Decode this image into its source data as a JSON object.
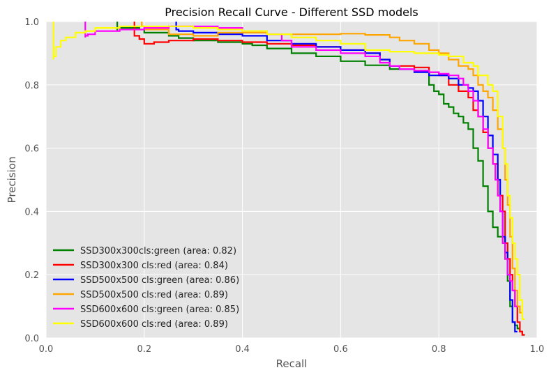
{
  "chart_data": {
    "type": "line",
    "title": "Precision Recall Curve - Different SSD models",
    "xlabel": "Recall",
    "ylabel": "Precision",
    "xlim": [
      0.0,
      1.0
    ],
    "ylim": [
      0.0,
      1.0
    ],
    "xticks": [
      "0.0",
      "0.2",
      "0.4",
      "0.6",
      "0.8",
      "1.0"
    ],
    "yticks": [
      "0.0",
      "0.2",
      "0.4",
      "0.6",
      "0.8",
      "1.0"
    ],
    "grid": true,
    "legend_position": "lower-left",
    "series": [
      {
        "name": "SSD300x300cls:green (area: 0.82)",
        "color": "#008000",
        "x": [
          0.145,
          0.145,
          0.15,
          0.18,
          0.19,
          0.2,
          0.25,
          0.27,
          0.3,
          0.35,
          0.4,
          0.42,
          0.45,
          0.5,
          0.55,
          0.6,
          0.65,
          0.7,
          0.75,
          0.78,
          0.79,
          0.8,
          0.81,
          0.82,
          0.83,
          0.84,
          0.85,
          0.86,
          0.87,
          0.88,
          0.89,
          0.9,
          0.91,
          0.92,
          0.93,
          0.935,
          0.94,
          0.945,
          0.95,
          0.955,
          0.96,
          0.965,
          0.97,
          0.975
        ],
        "y": [
          1.0,
          0.97,
          0.98,
          0.98,
          0.98,
          0.975,
          0.965,
          0.955,
          0.948,
          0.94,
          0.935,
          0.93,
          0.925,
          0.915,
          0.9,
          0.89,
          0.875,
          0.862,
          0.85,
          0.845,
          0.8,
          0.78,
          0.77,
          0.74,
          0.73,
          0.71,
          0.7,
          0.68,
          0.66,
          0.6,
          0.56,
          0.48,
          0.4,
          0.35,
          0.32,
          0.3,
          0.25,
          0.18,
          0.1,
          0.05,
          0.04,
          0.03,
          0.02,
          0.01
        ]
      },
      {
        "name": "SSD300x300 cls:red (area: 0.84)",
        "color": "#ff0000",
        "x": [
          0.18,
          0.18,
          0.19,
          0.2,
          0.22,
          0.25,
          0.3,
          0.35,
          0.4,
          0.45,
          0.5,
          0.55,
          0.6,
          0.65,
          0.68,
          0.7,
          0.75,
          0.78,
          0.8,
          0.82,
          0.84,
          0.86,
          0.87,
          0.88,
          0.89,
          0.9,
          0.91,
          0.92,
          0.93,
          0.935,
          0.94,
          0.945,
          0.95,
          0.955,
          0.96,
          0.965,
          0.97,
          0.975
        ],
        "y": [
          1.0,
          0.96,
          0.955,
          0.945,
          0.93,
          0.935,
          0.94,
          0.945,
          0.94,
          0.935,
          0.93,
          0.925,
          0.92,
          0.91,
          0.9,
          0.88,
          0.86,
          0.855,
          0.84,
          0.83,
          0.8,
          0.78,
          0.76,
          0.72,
          0.7,
          0.65,
          0.6,
          0.55,
          0.45,
          0.4,
          0.3,
          0.25,
          0.2,
          0.15,
          0.1,
          0.05,
          0.02,
          0.01
        ]
      },
      {
        "name": "SSD500x500 cls:green (area: 0.86)",
        "color": "#0000ff",
        "x": [
          0.265,
          0.265,
          0.27,
          0.3,
          0.35,
          0.4,
          0.45,
          0.5,
          0.55,
          0.6,
          0.65,
          0.68,
          0.7,
          0.72,
          0.75,
          0.78,
          0.8,
          0.82,
          0.84,
          0.86,
          0.87,
          0.88,
          0.89,
          0.9,
          0.91,
          0.92,
          0.925,
          0.93,
          0.935,
          0.94,
          0.945,
          0.95,
          0.955,
          0.96
        ],
        "y": [
          1.0,
          0.98,
          0.975,
          0.97,
          0.965,
          0.96,
          0.955,
          0.94,
          0.93,
          0.92,
          0.91,
          0.9,
          0.88,
          0.86,
          0.85,
          0.84,
          0.83,
          0.83,
          0.82,
          0.8,
          0.79,
          0.78,
          0.75,
          0.7,
          0.64,
          0.58,
          0.5,
          0.4,
          0.32,
          0.27,
          0.2,
          0.12,
          0.05,
          0.02
        ]
      },
      {
        "name": "SSD500x500 cls:red (area: 0.89)",
        "color": "#ffa500",
        "x": [
          0.195,
          0.195,
          0.2,
          0.25,
          0.3,
          0.35,
          0.4,
          0.45,
          0.5,
          0.55,
          0.6,
          0.65,
          0.7,
          0.72,
          0.75,
          0.78,
          0.8,
          0.82,
          0.84,
          0.86,
          0.87,
          0.88,
          0.89,
          0.9,
          0.91,
          0.92,
          0.93,
          0.935,
          0.94,
          0.945,
          0.95,
          0.955,
          0.96,
          0.965,
          0.97
        ],
        "y": [
          1.0,
          0.99,
          0.985,
          0.975,
          0.96,
          0.955,
          0.965,
          0.965,
          0.96,
          0.96,
          0.96,
          0.962,
          0.958,
          0.95,
          0.94,
          0.93,
          0.91,
          0.9,
          0.88,
          0.86,
          0.85,
          0.83,
          0.8,
          0.78,
          0.76,
          0.72,
          0.66,
          0.6,
          0.5,
          0.42,
          0.32,
          0.22,
          0.15,
          0.1,
          0.08
        ]
      },
      {
        "name": "SSD600x600 cls:green (area: 0.85)",
        "color": "#ff00ff",
        "x": [
          0.08,
          0.08,
          0.085,
          0.1,
          0.15,
          0.2,
          0.25,
          0.3,
          0.35,
          0.4,
          0.45,
          0.48,
          0.5,
          0.55,
          0.6,
          0.65,
          0.68,
          0.7,
          0.72,
          0.75,
          0.78,
          0.8,
          0.82,
          0.84,
          0.85,
          0.86,
          0.87,
          0.88,
          0.89,
          0.9,
          0.91,
          0.915,
          0.92,
          0.925,
          0.93,
          0.935,
          0.94,
          0.945,
          0.95,
          0.955,
          0.96
        ],
        "y": [
          1.0,
          0.95,
          0.955,
          0.96,
          0.97,
          0.975,
          0.98,
          0.985,
          0.985,
          0.98,
          0.97,
          0.96,
          0.94,
          0.92,
          0.91,
          0.9,
          0.89,
          0.87,
          0.86,
          0.85,
          0.845,
          0.84,
          0.835,
          0.83,
          0.82,
          0.8,
          0.78,
          0.75,
          0.7,
          0.66,
          0.6,
          0.55,
          0.5,
          0.45,
          0.4,
          0.3,
          0.25,
          0.2,
          0.18,
          0.15,
          0.1
        ]
      },
      {
        "name": "SSD600x600 cls:red (area: 0.89)",
        "color": "#ffff00",
        "x": [
          0.015,
          0.015,
          0.02,
          0.03,
          0.04,
          0.06,
          0.08,
          0.1,
          0.15,
          0.2,
          0.25,
          0.3,
          0.35,
          0.4,
          0.45,
          0.5,
          0.55,
          0.6,
          0.65,
          0.7,
          0.75,
          0.8,
          0.82,
          0.85,
          0.87,
          0.88,
          0.9,
          0.91,
          0.92,
          0.93,
          0.935,
          0.94,
          0.945,
          0.95,
          0.955,
          0.96,
          0.965,
          0.97,
          0.975
        ],
        "y": [
          1.0,
          0.88,
          0.89,
          0.92,
          0.94,
          0.95,
          0.965,
          0.97,
          0.98,
          0.985,
          0.985,
          0.985,
          0.98,
          0.975,
          0.97,
          0.96,
          0.95,
          0.94,
          0.93,
          0.91,
          0.905,
          0.9,
          0.895,
          0.89,
          0.87,
          0.86,
          0.83,
          0.8,
          0.78,
          0.7,
          0.6,
          0.55,
          0.45,
          0.38,
          0.3,
          0.25,
          0.2,
          0.12,
          0.06
        ]
      }
    ]
  }
}
